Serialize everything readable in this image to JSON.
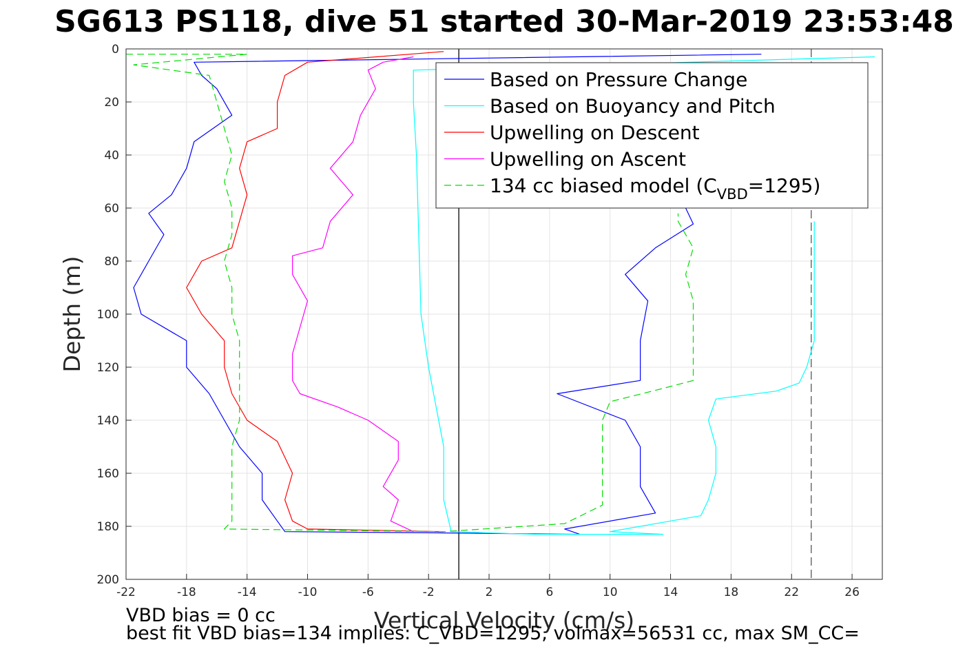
{
  "chart_data": {
    "type": "line",
    "title": "SG613 PS118, dive 51 started 30-Mar-2019 23:53:48",
    "xlabel": "Vertical Velocity (cm/s)",
    "ylabel": "Depth (m)",
    "xlim": [
      -22,
      28
    ],
    "ylim": [
      0,
      200
    ],
    "y_reversed": true,
    "grid": true,
    "x_ticks": [
      -22,
      -18,
      -14,
      -10,
      -6,
      -2,
      2,
      6,
      10,
      14,
      18,
      22,
      26
    ],
    "x_tick_labels": [
      "-22",
      "-18",
      "-14",
      "-10",
      "-6",
      "-2",
      "2",
      "6",
      "10",
      "14",
      "18",
      "22",
      "26"
    ],
    "y_ticks": [
      0,
      20,
      40,
      60,
      80,
      100,
      120,
      140,
      160,
      180,
      200
    ],
    "y_tick_labels": [
      "0",
      "20",
      "40",
      "60",
      "80",
      "100",
      "120",
      "140",
      "160",
      "180",
      "200"
    ],
    "legend_position": "top-right",
    "reference_lines": [
      {
        "orientation": "vertical",
        "x": 0,
        "style": "solid",
        "color": "#000000"
      },
      {
        "orientation": "vertical",
        "x": 23.3,
        "style": "dashed",
        "color": "#555555"
      }
    ],
    "series": [
      {
        "name": "Based on Pressure Change",
        "color": "#0000ff",
        "style": "solid",
        "points": [
          [
            20,
            2
          ],
          [
            -17.5,
            5
          ],
          [
            -17,
            10
          ],
          [
            -16,
            15
          ],
          [
            -15,
            25
          ],
          [
            -17.5,
            35
          ],
          [
            -18,
            45
          ],
          [
            -19,
            55
          ],
          [
            -20.5,
            62
          ],
          [
            -19.5,
            70
          ],
          [
            -20.5,
            80
          ],
          [
            -21.5,
            90
          ],
          [
            -21,
            100
          ],
          [
            -18,
            110
          ],
          [
            -18,
            120
          ],
          [
            -16.5,
            130
          ],
          [
            -15.5,
            140
          ],
          [
            -14.5,
            150
          ],
          [
            -13,
            160
          ],
          [
            -13,
            170
          ],
          [
            -12,
            178
          ],
          [
            -11.5,
            182
          ],
          [
            -1,
            182.5
          ],
          [
            8,
            183
          ],
          [
            7,
            181
          ],
          [
            13,
            175
          ],
          [
            12,
            165
          ],
          [
            12,
            150
          ],
          [
            11,
            140
          ],
          [
            6.5,
            130
          ],
          [
            12,
            125
          ],
          [
            12,
            110
          ],
          [
            12.5,
            95
          ],
          [
            11,
            85
          ],
          [
            13,
            75
          ],
          [
            15.5,
            66
          ],
          [
            15,
            60
          ]
        ]
      },
      {
        "name": "Based on Buoyancy and Pitch",
        "color": "#00ffff",
        "style": "solid",
        "points": [
          [
            27.5,
            3
          ],
          [
            -3,
            8
          ],
          [
            -3,
            20
          ],
          [
            -2.8,
            40
          ],
          [
            -2.7,
            60
          ],
          [
            -2.6,
            80
          ],
          [
            -2.5,
            100
          ],
          [
            -2,
            120
          ],
          [
            -1.5,
            135
          ],
          [
            -1,
            150
          ],
          [
            -1,
            170
          ],
          [
            -0.5,
            182
          ],
          [
            5,
            183
          ],
          [
            13.5,
            183
          ],
          [
            10,
            182
          ],
          [
            16,
            176
          ],
          [
            16.5,
            170
          ],
          [
            17,
            160
          ],
          [
            17,
            150
          ],
          [
            16.5,
            140
          ],
          [
            17,
            132
          ],
          [
            21,
            129
          ],
          [
            22.5,
            126
          ],
          [
            23,
            120
          ],
          [
            23.5,
            110
          ],
          [
            23.5,
            100
          ],
          [
            23.5,
            90
          ],
          [
            23.5,
            80
          ],
          [
            23.5,
            70
          ],
          [
            23.5,
            65
          ]
        ]
      },
      {
        "name": "Upwelling on Descent",
        "color": "#ff0000",
        "style": "solid",
        "points": [
          [
            -1,
            1
          ],
          [
            -10,
            5
          ],
          [
            -11.5,
            10
          ],
          [
            -12,
            20
          ],
          [
            -12,
            30
          ],
          [
            -14,
            35
          ],
          [
            -14.5,
            45
          ],
          [
            -14,
            55
          ],
          [
            -14.5,
            65
          ],
          [
            -15,
            75
          ],
          [
            -17,
            80
          ],
          [
            -18,
            90
          ],
          [
            -17,
            100
          ],
          [
            -15.5,
            110
          ],
          [
            -15.5,
            120
          ],
          [
            -15,
            130
          ],
          [
            -14,
            140
          ],
          [
            -12,
            148
          ],
          [
            -11,
            160
          ],
          [
            -11.5,
            170
          ],
          [
            -11,
            178
          ],
          [
            -10,
            181
          ],
          [
            -1,
            182
          ]
        ]
      },
      {
        "name": "Upwelling on Ascent",
        "color": "#ff00ff",
        "style": "solid",
        "points": [
          [
            -3,
            182
          ],
          [
            -4.5,
            178
          ],
          [
            -4,
            170
          ],
          [
            -5,
            165
          ],
          [
            -4,
            155
          ],
          [
            -4,
            148
          ],
          [
            -6,
            140
          ],
          [
            -8,
            135
          ],
          [
            -10.5,
            130
          ],
          [
            -11,
            125
          ],
          [
            -11,
            115
          ],
          [
            -10.5,
            105
          ],
          [
            -10,
            95
          ],
          [
            -11,
            85
          ],
          [
            -11,
            78
          ],
          [
            -9,
            75
          ],
          [
            -8.5,
            65
          ],
          [
            -7,
            55
          ],
          [
            -8.5,
            45
          ],
          [
            -7,
            35
          ],
          [
            -6.5,
            25
          ],
          [
            -5.5,
            15
          ],
          [
            -6,
            8
          ],
          [
            -5,
            5
          ],
          [
            -3,
            3
          ]
        ]
      },
      {
        "name": "134 cc biased model (C_VBD=1295)",
        "color": "#00dd00",
        "style": "dashed",
        "points": [
          [
            -22,
            2
          ],
          [
            -14,
            2
          ],
          [
            -21.5,
            6
          ],
          [
            -16.5,
            10
          ],
          [
            -16,
            20
          ],
          [
            -15.5,
            30
          ],
          [
            -15,
            40
          ],
          [
            -15.5,
            50
          ],
          [
            -15,
            60
          ],
          [
            -15,
            70
          ],
          [
            -15.5,
            80
          ],
          [
            -15,
            90
          ],
          [
            -15,
            100
          ],
          [
            -14.5,
            110
          ],
          [
            -14.5,
            120
          ],
          [
            -14.5,
            130
          ],
          [
            -14.5,
            140
          ],
          [
            -15,
            150
          ],
          [
            -15,
            160
          ],
          [
            -15,
            170
          ],
          [
            -15,
            178
          ],
          [
            -15.5,
            181
          ],
          [
            -1,
            182
          ],
          [
            7,
            179
          ],
          [
            9.5,
            172
          ],
          [
            9.5,
            160
          ],
          [
            9.5,
            150
          ],
          [
            9.5,
            140
          ],
          [
            10,
            133
          ],
          [
            13.5,
            128
          ],
          [
            15.5,
            125
          ],
          [
            15.5,
            115
          ],
          [
            15.5,
            105
          ],
          [
            15.5,
            95
          ],
          [
            15,
            85
          ],
          [
            15.5,
            75
          ],
          [
            14.5,
            65
          ],
          [
            14.5,
            62
          ]
        ]
      }
    ]
  },
  "legend": {
    "items": [
      {
        "label": "Based on Pressure Change",
        "color": "#0000ff",
        "dashed": false
      },
      {
        "label": "Based on Buoyancy and Pitch",
        "color": "#00ffff",
        "dashed": false
      },
      {
        "label": "Upwelling on Descent",
        "color": "#ff0000",
        "dashed": false
      },
      {
        "label": "Upwelling on Ascent",
        "color": "#ff00ff",
        "dashed": false
      },
      {
        "label": "134 cc biased model (C",
        "subscript": "VBD",
        "suffix": "=1295)",
        "color": "#00dd00",
        "dashed": true
      }
    ]
  },
  "footer": {
    "line1": "VBD bias = 0 cc",
    "line2": "best fit VBD bias=134 implies: C_VBD=1295, volmax=56531 cc, max SM_CC="
  }
}
